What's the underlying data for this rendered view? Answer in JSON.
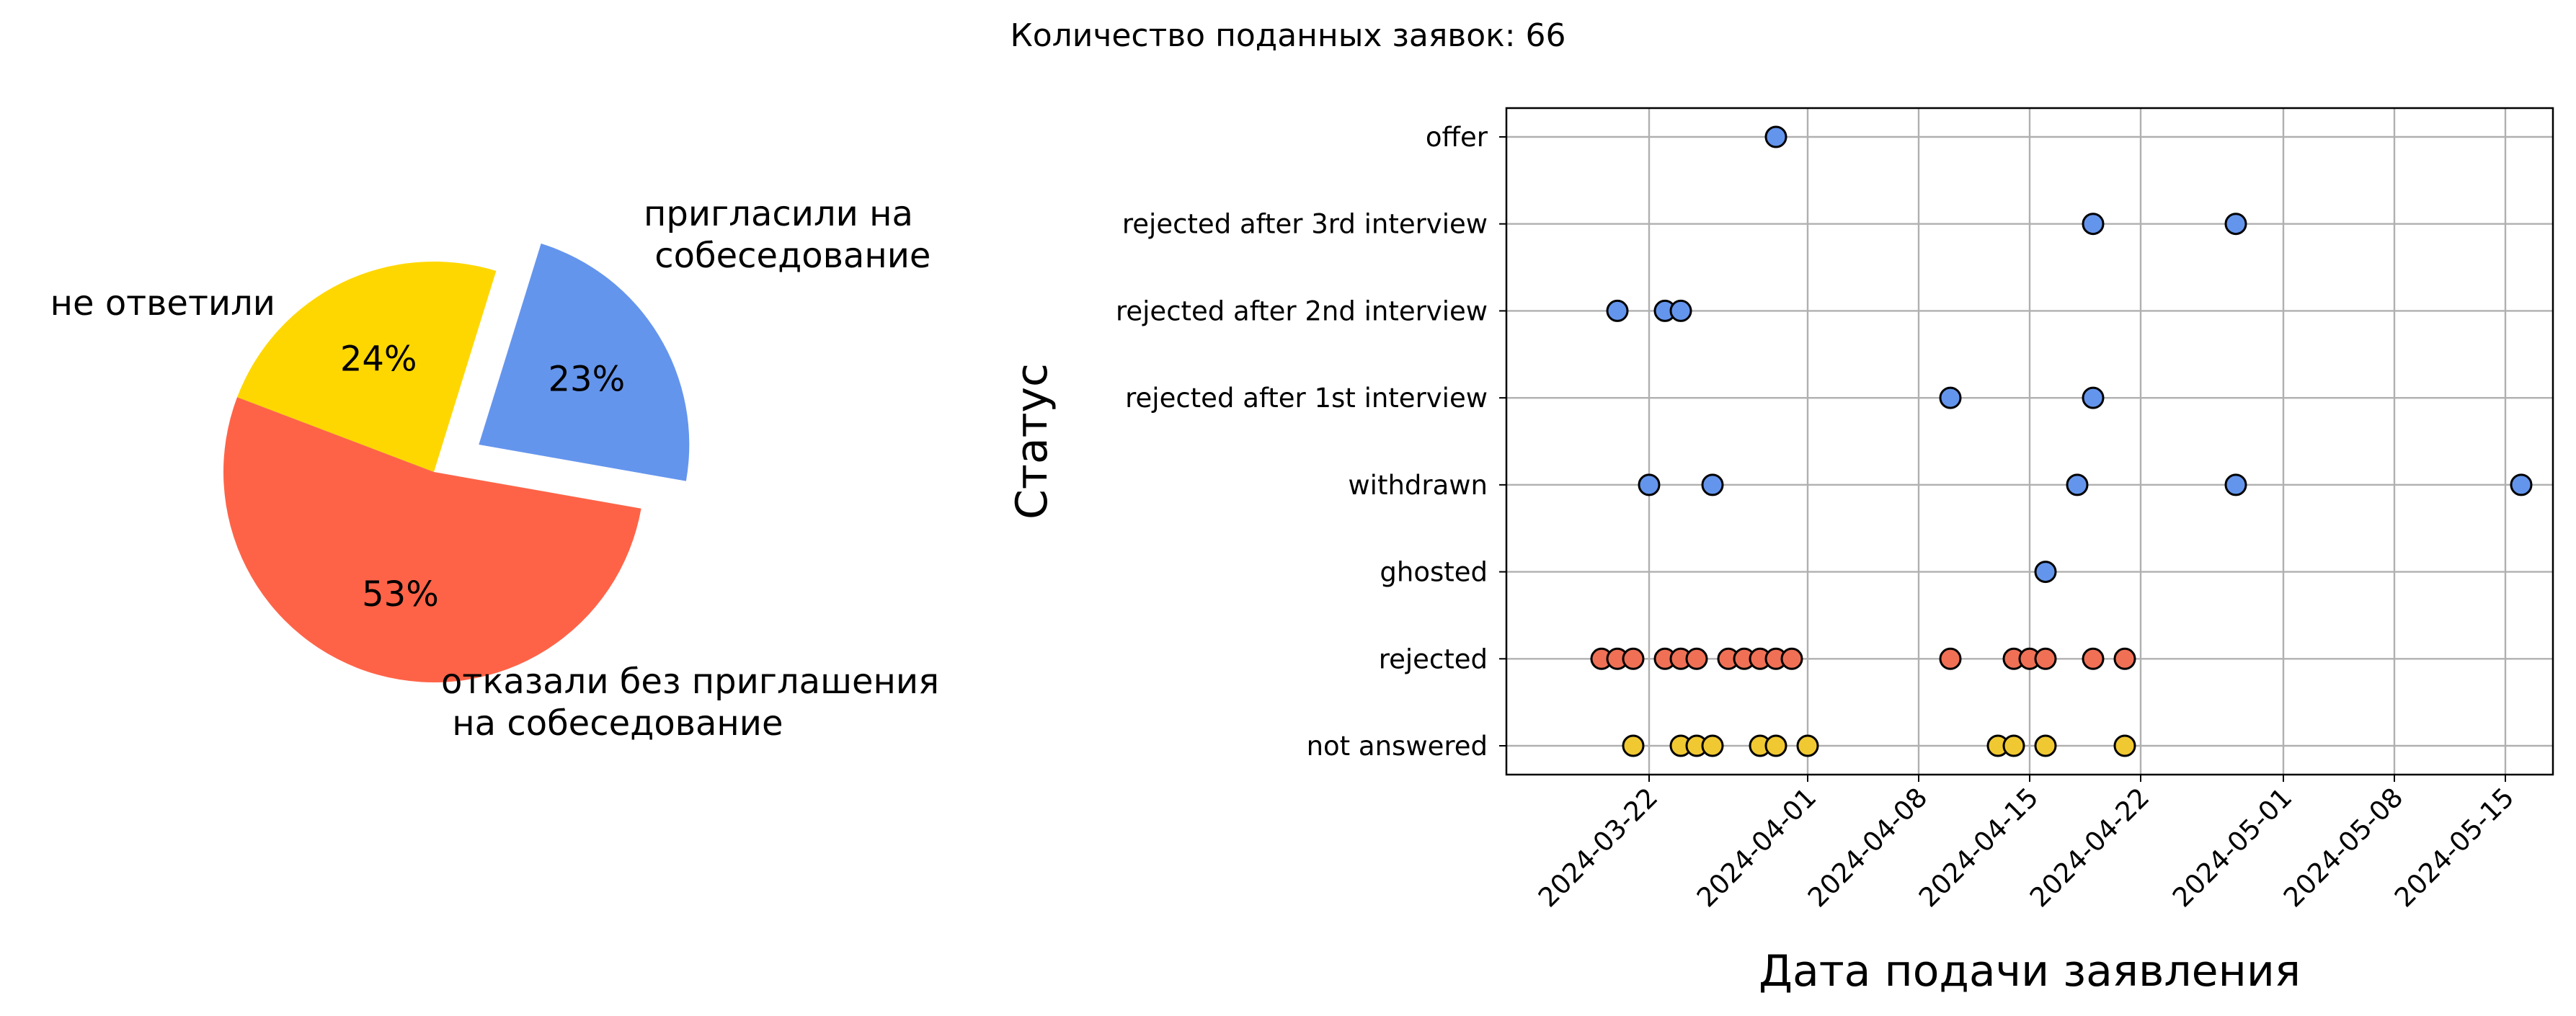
{
  "suptitle": "Количество поданных заявок: 66",
  "chart_data": [
    {
      "type": "pie",
      "slices": [
        {
          "label": "пригласили на\n собеседование",
          "pct_label": "23%",
          "value": 23,
          "color": "#6495ED",
          "exploded": true
        },
        {
          "label": "не ответили",
          "pct_label": "24%",
          "value": 24,
          "color": "#FFD700",
          "exploded": false
        },
        {
          "label": "отказали без приглашения\n на собеседование",
          "pct_label": "53%",
          "value": 53,
          "color": "#FF6347",
          "exploded": false
        }
      ]
    },
    {
      "type": "scatter",
      "xlabel": "Дата подачи заявления",
      "ylabel": "Статус",
      "grid": true,
      "xlim": [
        "2024-03-13",
        "2024-05-18"
      ],
      "x_ticks": [
        "2024-03-22",
        "2024-04-01",
        "2024-04-08",
        "2024-04-15",
        "2024-04-22",
        "2024-05-01",
        "2024-05-08",
        "2024-05-15"
      ],
      "categories": [
        "not answered",
        "rejected",
        "ghosted",
        "withdrawn",
        "rejected after 1st interview",
        "rejected after 2nd interview",
        "rejected after 3rd interview",
        "offer"
      ],
      "series": [
        {
          "status": "offer",
          "color": "#6495ED",
          "dates": [
            "2024-03-30"
          ]
        },
        {
          "status": "rejected after 3rd interview",
          "color": "#6495ED",
          "dates": [
            "2024-04-19",
            "2024-04-28"
          ]
        },
        {
          "status": "rejected after 2nd interview",
          "color": "#6495ED",
          "dates": [
            "2024-03-20",
            "2024-03-23",
            "2024-03-24"
          ]
        },
        {
          "status": "rejected after 1st interview",
          "color": "#6495ED",
          "dates": [
            "2024-04-10",
            "2024-04-19"
          ]
        },
        {
          "status": "withdrawn",
          "color": "#6495ED",
          "dates": [
            "2024-03-22",
            "2024-03-26",
            "2024-04-18",
            "2024-04-28",
            "2024-05-16"
          ]
        },
        {
          "status": "ghosted",
          "color": "#6495ED",
          "dates": [
            "2024-04-16"
          ]
        },
        {
          "status": "rejected",
          "color": "#F07055",
          "dates": [
            "2024-03-19",
            "2024-03-20",
            "2024-03-21",
            "2024-03-23",
            "2024-03-24",
            "2024-03-25",
            "2024-03-27",
            "2024-03-28",
            "2024-03-29",
            "2024-03-30",
            "2024-03-31",
            "2024-04-10",
            "2024-04-14",
            "2024-04-15",
            "2024-04-16",
            "2024-04-19",
            "2024-04-21"
          ]
        },
        {
          "status": "not answered",
          "color": "#F0C832",
          "dates": [
            "2024-03-21",
            "2024-03-24",
            "2024-03-25",
            "2024-03-26",
            "2024-03-29",
            "2024-03-30",
            "2024-04-01",
            "2024-04-13",
            "2024-04-14",
            "2024-04-16",
            "2024-04-21"
          ]
        }
      ]
    }
  ]
}
